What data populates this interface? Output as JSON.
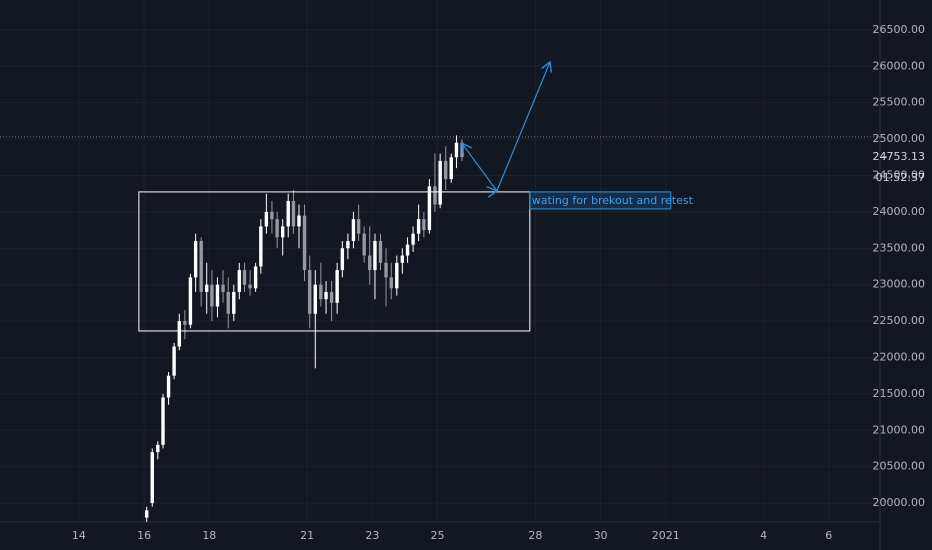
{
  "chart_data": {
    "type": "candlestick",
    "x": [
      16.08,
      16.25,
      16.42,
      16.58,
      16.75,
      16.92,
      17.08,
      17.25,
      17.42,
      17.58,
      17.75,
      17.92,
      18.08,
      18.25,
      18.42,
      18.58,
      18.75,
      18.92,
      19.08,
      19.25,
      19.42,
      19.58,
      19.75,
      19.92,
      20.08,
      20.25,
      20.42,
      20.58,
      20.75,
      20.92,
      21.08,
      21.25,
      21.42,
      21.58,
      21.75,
      21.92,
      22.08,
      22.25,
      22.42,
      22.58,
      22.75,
      22.92,
      23.08,
      23.25,
      23.42,
      23.58,
      23.75,
      23.92,
      24.08,
      24.25,
      24.42,
      24.58,
      24.75,
      24.92,
      25.08,
      25.25,
      25.42,
      25.58,
      25.75
    ],
    "open": [
      19800,
      20000,
      20700,
      20800,
      21450,
      21750,
      22150,
      22500,
      22450,
      23100,
      23600,
      22900,
      23000,
      22700,
      23000,
      22900,
      22600,
      22900,
      23200,
      23000,
      22950,
      23250,
      23800,
      24000,
      23900,
      23650,
      23800,
      24150,
      23800,
      23950,
      23200,
      22600,
      23000,
      22800,
      22900,
      22750,
      23200,
      23500,
      23600,
      23900,
      23700,
      23400,
      23200,
      23600,
      23300,
      23100,
      22950,
      23300,
      23400,
      23550,
      23700,
      23900,
      23750,
      24350,
      24100,
      24700,
      24450,
      24750,
      24950
    ],
    "high": [
      19950,
      20750,
      20850,
      21500,
      21800,
      22200,
      22600,
      22650,
      23150,
      23700,
      23650,
      23300,
      23200,
      23100,
      23200,
      23100,
      23000,
      23300,
      23300,
      23200,
      23300,
      23900,
      24250,
      24150,
      24000,
      23900,
      24250,
      24300,
      24100,
      24100,
      23400,
      23200,
      23300,
      23050,
      23050,
      23300,
      23600,
      23700,
      24000,
      24100,
      23800,
      23800,
      23700,
      23700,
      23500,
      23300,
      23400,
      23500,
      23650,
      23800,
      24100,
      24000,
      24450,
      24800,
      24800,
      24900,
      24800,
      25050,
      25000
    ],
    "low": [
      19740,
      19950,
      20600,
      20750,
      21350,
      21700,
      22100,
      22250,
      22400,
      22900,
      22700,
      22600,
      22500,
      22550,
      22750,
      22400,
      22500,
      22800,
      22900,
      22850,
      22900,
      23150,
      23700,
      23700,
      23500,
      23400,
      23650,
      23700,
      23500,
      23050,
      22400,
      21850,
      22700,
      22600,
      22500,
      22600,
      23100,
      23350,
      23500,
      23600,
      23300,
      23000,
      22800,
      23200,
      22700,
      22800,
      22850,
      23150,
      23300,
      23450,
      23600,
      23650,
      23700,
      24000,
      24050,
      24300,
      24400,
      24600,
      24700
    ],
    "close": [
      19900,
      20700,
      20800,
      21450,
      21750,
      22150,
      22500,
      22450,
      23100,
      23600,
      22900,
      23000,
      22700,
      23000,
      22900,
      22600,
      22900,
      23200,
      23000,
      22950,
      23250,
      23800,
      24000,
      23900,
      23650,
      23800,
      24150,
      23800,
      23950,
      23200,
      22600,
      23000,
      22800,
      22900,
      22750,
      23200,
      23500,
      23600,
      23900,
      23700,
      23400,
      23200,
      23600,
      23300,
      23100,
      22950,
      23300,
      23400,
      23550,
      23700,
      23900,
      23750,
      24350,
      24100,
      24700,
      24450,
      24750,
      24950,
      24753.13
    ],
    "up_color": "#ffffff",
    "down_color": "#9598a1",
    "xlim": [
      11.58,
      38.57
    ],
    "ylim": [
      19740,
      26910
    ],
    "xticks": [
      14,
      16,
      18,
      21,
      23,
      25,
      28,
      30,
      {
        "value": 32,
        "label": "2021"
      },
      {
        "value": 35,
        "label": "4"
      },
      {
        "value": 37,
        "label": "6"
      }
    ],
    "yticks": [
      {
        "value": 20000,
        "label": "20000.00"
      },
      {
        "value": 20500,
        "label": "20500.00"
      },
      {
        "value": 21000,
        "label": "21000.00"
      },
      {
        "value": 21500,
        "label": "21500.00"
      },
      {
        "value": 22000,
        "label": "22000.00"
      },
      {
        "value": 22500,
        "label": "22500.00"
      },
      {
        "value": 23000,
        "label": "23000.00"
      },
      {
        "value": 23500,
        "label": "23500.00"
      },
      {
        "value": 24000,
        "label": "24000.00"
      },
      {
        "value": 24500,
        "label": "24500.00"
      },
      {
        "value": 25000,
        "label": "25000.00"
      },
      {
        "value": 25500,
        "label": "25500.00"
      },
      {
        "value": 26000,
        "label": "26000.00"
      },
      {
        "value": 26500,
        "label": "26500.00"
      }
    ],
    "grid": true,
    "countdown": "01:52:37",
    "dotted_line": 25030,
    "rectangle": {
      "x": [
        15.84,
        27.83
      ],
      "y": [
        22364,
        24274
      ],
      "color": "#ffffff"
    },
    "arrow": {
      "x": [
        25.75,
        26.82,
        28.45
      ],
      "y": [
        24940,
        24288,
        26060
      ],
      "color": "#2a8ee0"
    },
    "annotation": "wating for brekout and retest"
  }
}
